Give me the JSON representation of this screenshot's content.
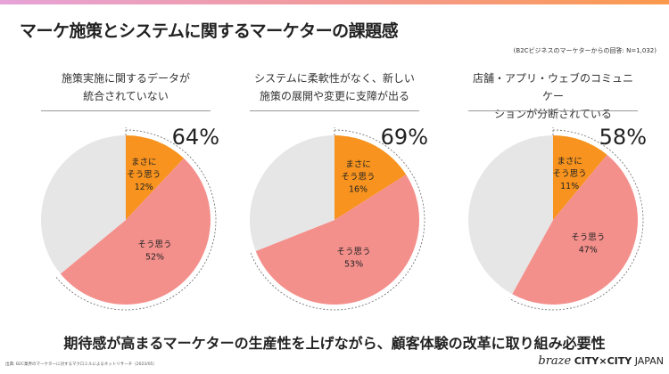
{
  "title": "マーケ施策とシステムに関するマーケターの課題感",
  "note": "(B2Cビジネスのマーケターからの回答: N=1,032)",
  "bottom_message": "期待感が高まるマーケターの生産性を上げながら、顧客体験の改革に取り組み必要性",
  "source": "出典: B2C業界のマーケターに対するマクロミルによるネットリサーチ（2023/05）",
  "logo": {
    "brand": "braze",
    "event": "CITY×CITY",
    "region": "JAPAN"
  },
  "colors": {
    "strongly": "#f7931e",
    "agree": "#f4908c",
    "other": "#e6e6e6"
  },
  "chart_data": [
    {
      "type": "pie",
      "title": [
        "施策実施に関するデータが",
        "統合されていない"
      ],
      "total_label": "64%",
      "slices": [
        {
          "label": [
            "まさに",
            "そう思う"
          ],
          "value": 12,
          "value_label": "12%"
        },
        {
          "label": [
            "そう思う"
          ],
          "value": 52,
          "value_label": "52%"
        },
        {
          "label": [],
          "value": 36
        }
      ]
    },
    {
      "type": "pie",
      "title": [
        "システムに柔軟性がなく、新しい",
        "施策の展開や変更に支障が出る"
      ],
      "total_label": "69%",
      "slices": [
        {
          "label": [
            "まさに",
            "そう思う"
          ],
          "value": 16,
          "value_label": "16%"
        },
        {
          "label": [
            "そう思う"
          ],
          "value": 53,
          "value_label": "53%"
        },
        {
          "label": [],
          "value": 31
        }
      ]
    },
    {
      "type": "pie",
      "title": [
        "店舗・アプリ・ウェブのコミュニケー",
        "ションが分断されている"
      ],
      "total_label": "58%",
      "slices": [
        {
          "label": [
            "まさに",
            "そう思う"
          ],
          "value": 11,
          "value_label": "11%"
        },
        {
          "label": [
            "そう思う"
          ],
          "value": 47,
          "value_label": "47%"
        },
        {
          "label": [],
          "value": 42
        }
      ]
    }
  ]
}
